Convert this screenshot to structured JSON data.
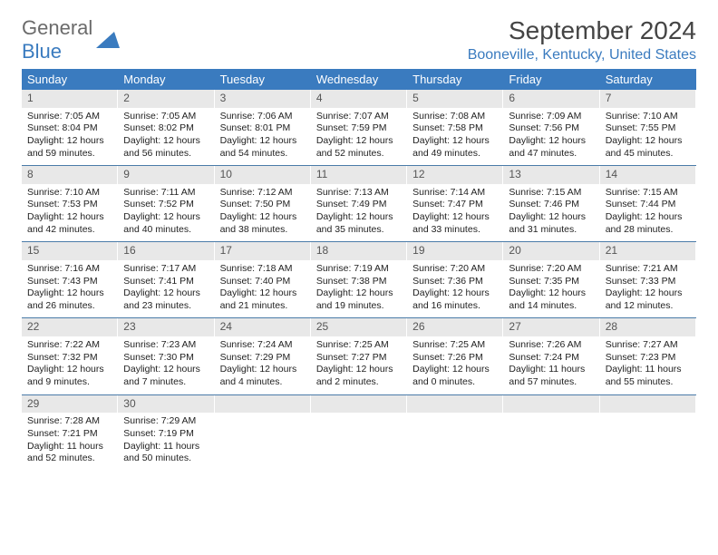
{
  "logo": {
    "general": "General",
    "blue": "Blue"
  },
  "month_title": "September 2024",
  "location": "Booneville, Kentucky, United States",
  "colors": {
    "header_bg": "#3a7bbf",
    "header_text": "#ffffff",
    "daynum_bg": "#e8e8e8",
    "border": "#4a7ba8",
    "brand_gray": "#6b6b6b",
    "brand_blue": "#3a7bbf"
  },
  "day_names": [
    "Sunday",
    "Monday",
    "Tuesday",
    "Wednesday",
    "Thursday",
    "Friday",
    "Saturday"
  ],
  "weeks": [
    [
      {
        "num": "1",
        "sunrise": "Sunrise: 7:05 AM",
        "sunset": "Sunset: 8:04 PM",
        "daylight1": "Daylight: 12 hours",
        "daylight2": "and 59 minutes."
      },
      {
        "num": "2",
        "sunrise": "Sunrise: 7:05 AM",
        "sunset": "Sunset: 8:02 PM",
        "daylight1": "Daylight: 12 hours",
        "daylight2": "and 56 minutes."
      },
      {
        "num": "3",
        "sunrise": "Sunrise: 7:06 AM",
        "sunset": "Sunset: 8:01 PM",
        "daylight1": "Daylight: 12 hours",
        "daylight2": "and 54 minutes."
      },
      {
        "num": "4",
        "sunrise": "Sunrise: 7:07 AM",
        "sunset": "Sunset: 7:59 PM",
        "daylight1": "Daylight: 12 hours",
        "daylight2": "and 52 minutes."
      },
      {
        "num": "5",
        "sunrise": "Sunrise: 7:08 AM",
        "sunset": "Sunset: 7:58 PM",
        "daylight1": "Daylight: 12 hours",
        "daylight2": "and 49 minutes."
      },
      {
        "num": "6",
        "sunrise": "Sunrise: 7:09 AM",
        "sunset": "Sunset: 7:56 PM",
        "daylight1": "Daylight: 12 hours",
        "daylight2": "and 47 minutes."
      },
      {
        "num": "7",
        "sunrise": "Sunrise: 7:10 AM",
        "sunset": "Sunset: 7:55 PM",
        "daylight1": "Daylight: 12 hours",
        "daylight2": "and 45 minutes."
      }
    ],
    [
      {
        "num": "8",
        "sunrise": "Sunrise: 7:10 AM",
        "sunset": "Sunset: 7:53 PM",
        "daylight1": "Daylight: 12 hours",
        "daylight2": "and 42 minutes."
      },
      {
        "num": "9",
        "sunrise": "Sunrise: 7:11 AM",
        "sunset": "Sunset: 7:52 PM",
        "daylight1": "Daylight: 12 hours",
        "daylight2": "and 40 minutes."
      },
      {
        "num": "10",
        "sunrise": "Sunrise: 7:12 AM",
        "sunset": "Sunset: 7:50 PM",
        "daylight1": "Daylight: 12 hours",
        "daylight2": "and 38 minutes."
      },
      {
        "num": "11",
        "sunrise": "Sunrise: 7:13 AM",
        "sunset": "Sunset: 7:49 PM",
        "daylight1": "Daylight: 12 hours",
        "daylight2": "and 35 minutes."
      },
      {
        "num": "12",
        "sunrise": "Sunrise: 7:14 AM",
        "sunset": "Sunset: 7:47 PM",
        "daylight1": "Daylight: 12 hours",
        "daylight2": "and 33 minutes."
      },
      {
        "num": "13",
        "sunrise": "Sunrise: 7:15 AM",
        "sunset": "Sunset: 7:46 PM",
        "daylight1": "Daylight: 12 hours",
        "daylight2": "and 31 minutes."
      },
      {
        "num": "14",
        "sunrise": "Sunrise: 7:15 AM",
        "sunset": "Sunset: 7:44 PM",
        "daylight1": "Daylight: 12 hours",
        "daylight2": "and 28 minutes."
      }
    ],
    [
      {
        "num": "15",
        "sunrise": "Sunrise: 7:16 AM",
        "sunset": "Sunset: 7:43 PM",
        "daylight1": "Daylight: 12 hours",
        "daylight2": "and 26 minutes."
      },
      {
        "num": "16",
        "sunrise": "Sunrise: 7:17 AM",
        "sunset": "Sunset: 7:41 PM",
        "daylight1": "Daylight: 12 hours",
        "daylight2": "and 23 minutes."
      },
      {
        "num": "17",
        "sunrise": "Sunrise: 7:18 AM",
        "sunset": "Sunset: 7:40 PM",
        "daylight1": "Daylight: 12 hours",
        "daylight2": "and 21 minutes."
      },
      {
        "num": "18",
        "sunrise": "Sunrise: 7:19 AM",
        "sunset": "Sunset: 7:38 PM",
        "daylight1": "Daylight: 12 hours",
        "daylight2": "and 19 minutes."
      },
      {
        "num": "19",
        "sunrise": "Sunrise: 7:20 AM",
        "sunset": "Sunset: 7:36 PM",
        "daylight1": "Daylight: 12 hours",
        "daylight2": "and 16 minutes."
      },
      {
        "num": "20",
        "sunrise": "Sunrise: 7:20 AM",
        "sunset": "Sunset: 7:35 PM",
        "daylight1": "Daylight: 12 hours",
        "daylight2": "and 14 minutes."
      },
      {
        "num": "21",
        "sunrise": "Sunrise: 7:21 AM",
        "sunset": "Sunset: 7:33 PM",
        "daylight1": "Daylight: 12 hours",
        "daylight2": "and 12 minutes."
      }
    ],
    [
      {
        "num": "22",
        "sunrise": "Sunrise: 7:22 AM",
        "sunset": "Sunset: 7:32 PM",
        "daylight1": "Daylight: 12 hours",
        "daylight2": "and 9 minutes."
      },
      {
        "num": "23",
        "sunrise": "Sunrise: 7:23 AM",
        "sunset": "Sunset: 7:30 PM",
        "daylight1": "Daylight: 12 hours",
        "daylight2": "and 7 minutes."
      },
      {
        "num": "24",
        "sunrise": "Sunrise: 7:24 AM",
        "sunset": "Sunset: 7:29 PM",
        "daylight1": "Daylight: 12 hours",
        "daylight2": "and 4 minutes."
      },
      {
        "num": "25",
        "sunrise": "Sunrise: 7:25 AM",
        "sunset": "Sunset: 7:27 PM",
        "daylight1": "Daylight: 12 hours",
        "daylight2": "and 2 minutes."
      },
      {
        "num": "26",
        "sunrise": "Sunrise: 7:25 AM",
        "sunset": "Sunset: 7:26 PM",
        "daylight1": "Daylight: 12 hours",
        "daylight2": "and 0 minutes."
      },
      {
        "num": "27",
        "sunrise": "Sunrise: 7:26 AM",
        "sunset": "Sunset: 7:24 PM",
        "daylight1": "Daylight: 11 hours",
        "daylight2": "and 57 minutes."
      },
      {
        "num": "28",
        "sunrise": "Sunrise: 7:27 AM",
        "sunset": "Sunset: 7:23 PM",
        "daylight1": "Daylight: 11 hours",
        "daylight2": "and 55 minutes."
      }
    ],
    [
      {
        "num": "29",
        "sunrise": "Sunrise: 7:28 AM",
        "sunset": "Sunset: 7:21 PM",
        "daylight1": "Daylight: 11 hours",
        "daylight2": "and 52 minutes."
      },
      {
        "num": "30",
        "sunrise": "Sunrise: 7:29 AM",
        "sunset": "Sunset: 7:19 PM",
        "daylight1": "Daylight: 11 hours",
        "daylight2": "and 50 minutes."
      },
      null,
      null,
      null,
      null,
      null
    ]
  ]
}
